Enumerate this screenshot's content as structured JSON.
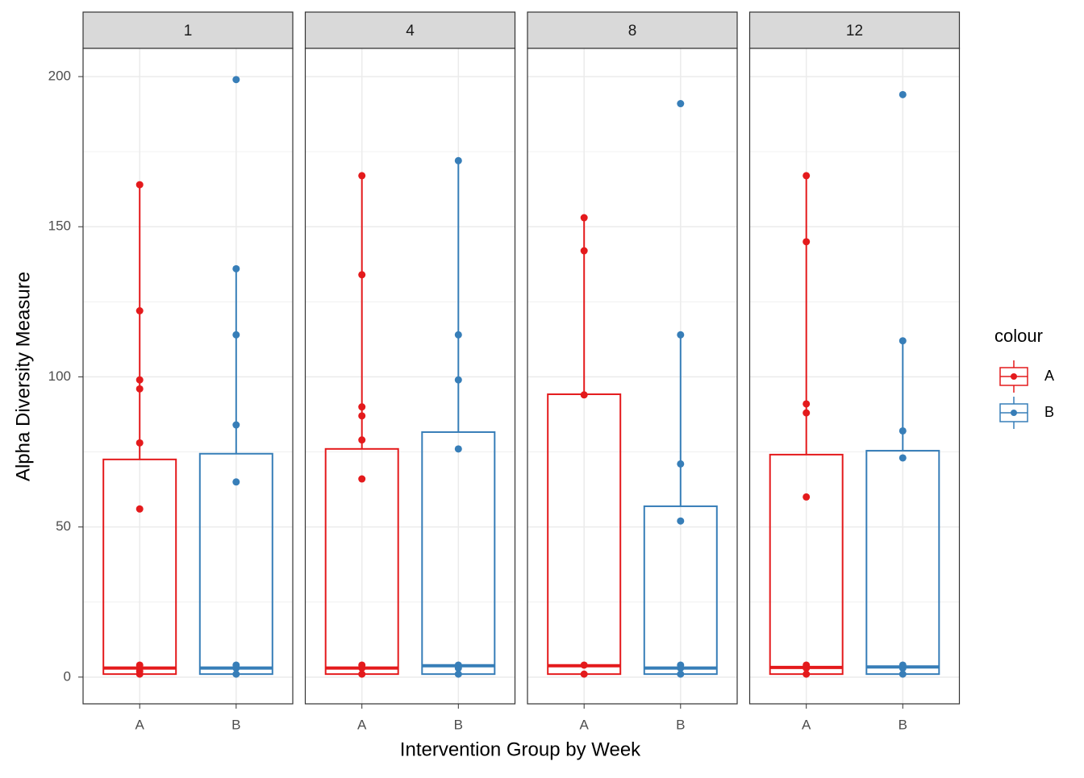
{
  "chart_data": {
    "type": "box",
    "xlabel": "Intervention Group by Week",
    "ylabel": "Alpha Diversity Measure",
    "legend_title": "colour",
    "legend_position": "right",
    "grid": true,
    "categories": [
      "A",
      "B"
    ],
    "series": [
      {
        "name": "A",
        "color": "#e41a1c"
      },
      {
        "name": "B",
        "color": "#377eb8"
      }
    ],
    "ylim": [
      -8.9,
      209.4
    ],
    "yticks": [
      0,
      50,
      100,
      150,
      200
    ],
    "facets": [
      {
        "label": "1",
        "boxes": [
          {
            "whisker_low": 1,
            "q1": 1,
            "median": 3,
            "q3": 72.5,
            "whisker_high": 164,
            "points": [
              164,
              122,
              99,
              96,
              78,
              56,
              4,
              3,
              2,
              1
            ]
          },
          {
            "whisker_low": 1,
            "q1": 1,
            "median": 3,
            "q3": 74.4,
            "whisker_high": 136,
            "points": [
              199,
              136,
              114,
              84,
              65,
              4,
              3,
              1
            ]
          }
        ]
      },
      {
        "label": "4",
        "boxes": [
          {
            "whisker_low": 1,
            "q1": 1,
            "median": 3,
            "q3": 76,
            "whisker_high": 167,
            "points": [
              167,
              134,
              90,
              87,
              79,
              66,
              4,
              3,
              1
            ]
          },
          {
            "whisker_low": 1,
            "q1": 1,
            "median": 3.8,
            "q3": 81.6,
            "whisker_high": 172,
            "points": [
              172,
              114,
              99,
              76,
              4,
              3,
              1
            ]
          }
        ]
      },
      {
        "label": "8",
        "boxes": [
          {
            "whisker_low": 1,
            "q1": 1,
            "median": 3.8,
            "q3": 94.2,
            "whisker_high": 153,
            "points": [
              153,
              142,
              94,
              4,
              1
            ]
          },
          {
            "whisker_low": 1,
            "q1": 1,
            "median": 3,
            "q3": 56.9,
            "whisker_high": 114,
            "points": [
              191,
              114,
              71,
              52,
              4,
              3,
              1
            ]
          }
        ]
      },
      {
        "label": "12",
        "boxes": [
          {
            "whisker_low": 1,
            "q1": 1,
            "median": 3.2,
            "q3": 74.1,
            "whisker_high": 167,
            "points": [
              167,
              145,
              91,
              88,
              60,
              4,
              3,
              1
            ]
          },
          {
            "whisker_low": 1,
            "q1": 1,
            "median": 3.4,
            "q3": 75.4,
            "whisker_high": 112,
            "points": [
              194,
              112,
              82,
              73,
              4,
              3,
              1
            ]
          }
        ]
      }
    ]
  }
}
